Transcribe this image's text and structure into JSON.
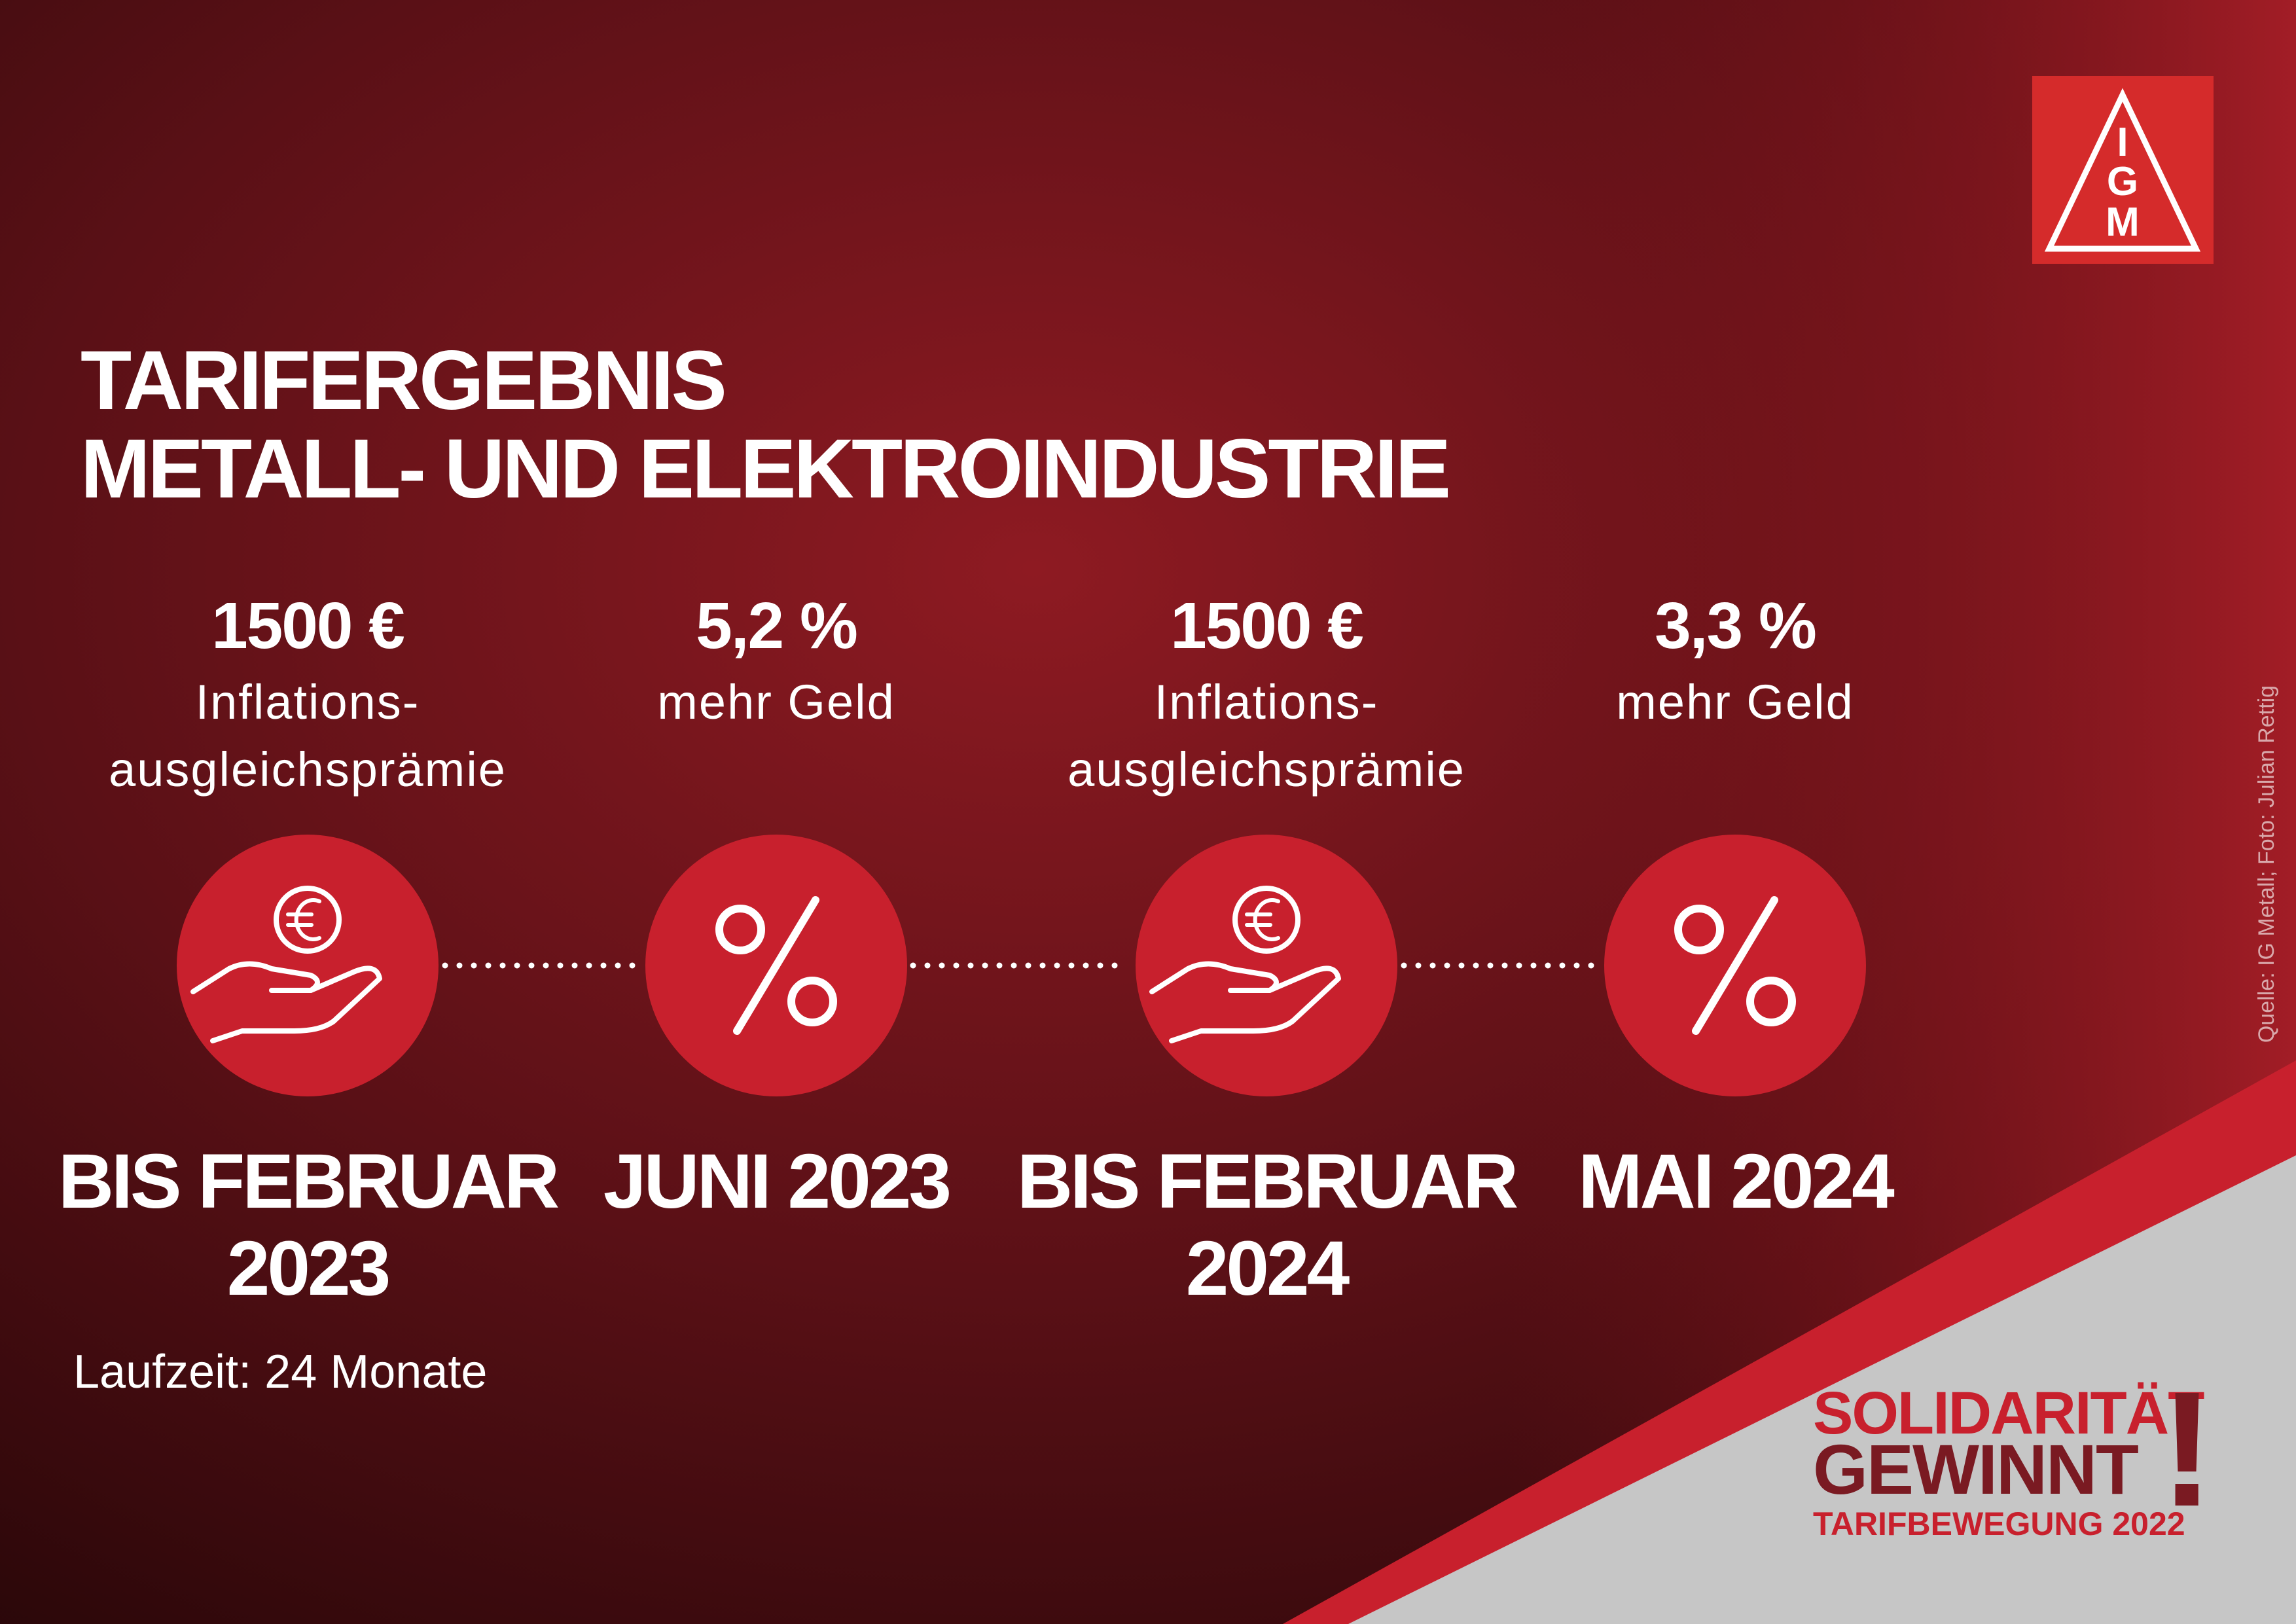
{
  "header": {
    "title_lines": [
      "TARIFERGEBNIS",
      "METALL- UND ELEKTROINDUSTRIE"
    ]
  },
  "steps": [
    {
      "amount": "1500 €",
      "description_lines": [
        "Inflations-",
        "ausgleichsprämie"
      ],
      "date_lines": [
        "BIS FEBRUAR",
        "2023"
      ]
    },
    {
      "amount": "5,2 %",
      "description_lines": [
        "mehr Geld"
      ],
      "date_lines": [
        "JUNI 2023"
      ]
    },
    {
      "amount": "1500 €",
      "description_lines": [
        "Inflations-",
        "ausgleichsprämie"
      ],
      "date_lines": [
        "BIS FEBRUAR",
        "2024"
      ]
    },
    {
      "amount": "3,3 %",
      "description_lines": [
        "mehr Geld"
      ],
      "date_lines": [
        "MAI 2024"
      ]
    }
  ],
  "note": "Laufzeit: 24 Monate",
  "credit": "Quelle: IG Metall; Foto: Julian Rettig",
  "logo": {
    "letters": [
      "I",
      "G",
      "M"
    ]
  },
  "slogan": {
    "line1": "SOLIDARITÄT",
    "line2": "GEWINNT",
    "mark": "!",
    "line3": "TARIFBEWEGUNG 2022"
  }
}
